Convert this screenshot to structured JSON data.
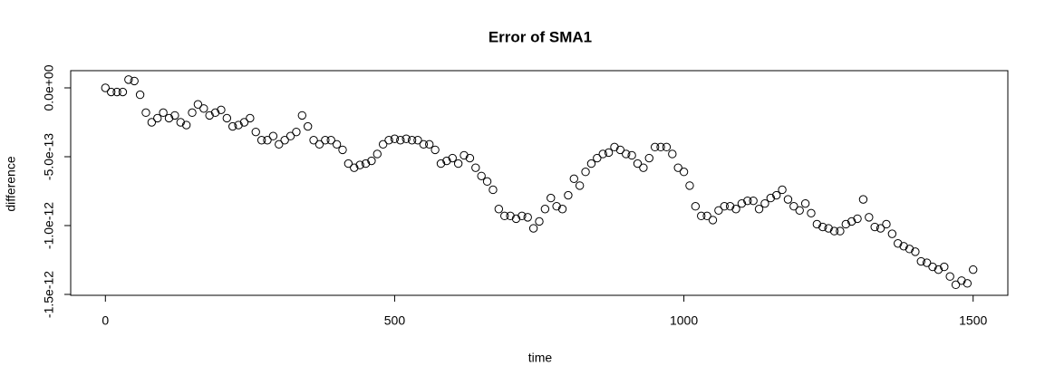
{
  "chart_data": {
    "type": "scatter",
    "title": "Error of SMA1",
    "x_label": "time",
    "y_label": "difference",
    "x": [
      0,
      10,
      20,
      30,
      40,
      50,
      60,
      70,
      80,
      90,
      100,
      110,
      120,
      130,
      140,
      150,
      160,
      170,
      180,
      190,
      200,
      210,
      220,
      230,
      240,
      250,
      260,
      270,
      280,
      290,
      300,
      310,
      320,
      330,
      340,
      350,
      360,
      370,
      380,
      390,
      400,
      410,
      420,
      430,
      440,
      450,
      460,
      470,
      480,
      490,
      500,
      510,
      520,
      530,
      540,
      550,
      560,
      570,
      580,
      590,
      600,
      610,
      620,
      630,
      640,
      650,
      660,
      670,
      680,
      690,
      700,
      710,
      720,
      730,
      740,
      750,
      760,
      770,
      780,
      790,
      800,
      810,
      820,
      830,
      840,
      850,
      860,
      870,
      880,
      890,
      900,
      910,
      920,
      930,
      940,
      950,
      960,
      970,
      980,
      990,
      1000,
      1010,
      1020,
      1030,
      1040,
      1050,
      1060,
      1070,
      1080,
      1090,
      1100,
      1110,
      1120,
      1130,
      1140,
      1150,
      1160,
      1170,
      1180,
      1190,
      1200,
      1210,
      1220,
      1230,
      1240,
      1250,
      1260,
      1270,
      1280,
      1290,
      1300,
      1310,
      1320,
      1330,
      1340,
      1350,
      1360,
      1370,
      1380,
      1390,
      1400,
      1410,
      1420,
      1430,
      1440,
      1450,
      1460,
      1470,
      1480,
      1490,
      1500
    ],
    "values": [
      0,
      -3e-14,
      -3e-14,
      -3e-14,
      6e-14,
      5e-14,
      -5e-14,
      -1.8e-13,
      -2.5e-13,
      -2.2e-13,
      -1.8e-13,
      -2.2e-13,
      -2e-13,
      -2.5e-13,
      -2.7e-13,
      -1.8e-13,
      -1.2e-13,
      -1.5e-13,
      -2e-13,
      -1.8e-13,
      -1.6e-13,
      -2.2e-13,
      -2.8e-13,
      -2.7e-13,
      -2.5e-13,
      -2.2e-13,
      -3.2e-13,
      -3.8e-13,
      -3.8e-13,
      -3.5e-13,
      -4.1e-13,
      -3.8e-13,
      -3.5e-13,
      -3.2e-13,
      -2e-13,
      -2.8e-13,
      -3.8e-13,
      -4.1e-13,
      -3.8e-13,
      -3.8e-13,
      -4.1e-13,
      -4.5e-13,
      -5.5e-13,
      -5.8e-13,
      -5.6e-13,
      -5.5e-13,
      -5.3e-13,
      -4.8e-13,
      -4.1e-13,
      -3.8e-13,
      -3.7e-13,
      -3.8e-13,
      -3.7e-13,
      -3.8e-13,
      -3.8e-13,
      -4.1e-13,
      -4.1e-13,
      -4.5e-13,
      -5.5e-13,
      -5.3e-13,
      -5.1e-13,
      -5.5e-13,
      -4.9e-13,
      -5.1e-13,
      -5.8e-13,
      -6.4e-13,
      -6.8e-13,
      -7.4e-13,
      -8.8e-13,
      -9.3e-13,
      -9.3e-13,
      -9.5e-13,
      -9.3e-13,
      -9.4e-13,
      -1.02e-12,
      -9.7e-13,
      -8.8e-13,
      -8e-13,
      -8.6e-13,
      -8.8e-13,
      -7.8e-13,
      -6.6e-13,
      -7.1e-13,
      -6.1e-13,
      -5.5e-13,
      -5.1e-13,
      -4.8e-13,
      -4.7e-13,
      -4.3e-13,
      -4.5e-13,
      -4.8e-13,
      -4.9e-13,
      -5.5e-13,
      -5.8e-13,
      -5.1e-13,
      -4.3e-13,
      -4.3e-13,
      -4.3e-13,
      -4.8e-13,
      -5.8e-13,
      -6.1e-13,
      -7.1e-13,
      -8.6e-13,
      -9.3e-13,
      -9.3e-13,
      -9.6e-13,
      -8.9e-13,
      -8.6e-13,
      -8.6e-13,
      -8.8e-13,
      -8.4e-13,
      -8.2e-13,
      -8.2e-13,
      -8.8e-13,
      -8.4e-13,
      -8e-13,
      -7.8e-13,
      -7.4e-13,
      -8.1e-13,
      -8.6e-13,
      -8.9e-13,
      -8.4e-13,
      -9.1e-13,
      -9.9e-13,
      -1.01e-12,
      -1.02e-12,
      -1.04e-12,
      -1.04e-12,
      -9.9e-13,
      -9.7e-13,
      -9.5e-13,
      -8.1e-13,
      -9.4e-13,
      -1.01e-12,
      -1.02e-12,
      -9.9e-13,
      -1.06e-12,
      -1.13e-12,
      -1.15e-12,
      -1.17e-12,
      -1.19e-12,
      -1.26e-12,
      -1.27e-12,
      -1.3e-12,
      -1.32e-12,
      -1.3e-12,
      -1.37e-12,
      -1.43e-12,
      -1.4e-12,
      -1.42e-12,
      -1.32e-12
    ],
    "color": "#000000",
    "xlim": [
      -60,
      1560
    ],
    "xticks": [
      0,
      500,
      1000,
      1500
    ],
    "ylim": [
      -1.5066e-12,
      1.25e-13
    ],
    "yticks": [
      {
        "value": 0,
        "label": "0.0e+00"
      },
      {
        "value": -5e-13,
        "label": "-5.0e-13"
      },
      {
        "value": -1e-12,
        "label": "-1.0e-12"
      },
      {
        "value": -1.5e-12,
        "label": "-1.5e-12"
      }
    ],
    "grid": false
  }
}
